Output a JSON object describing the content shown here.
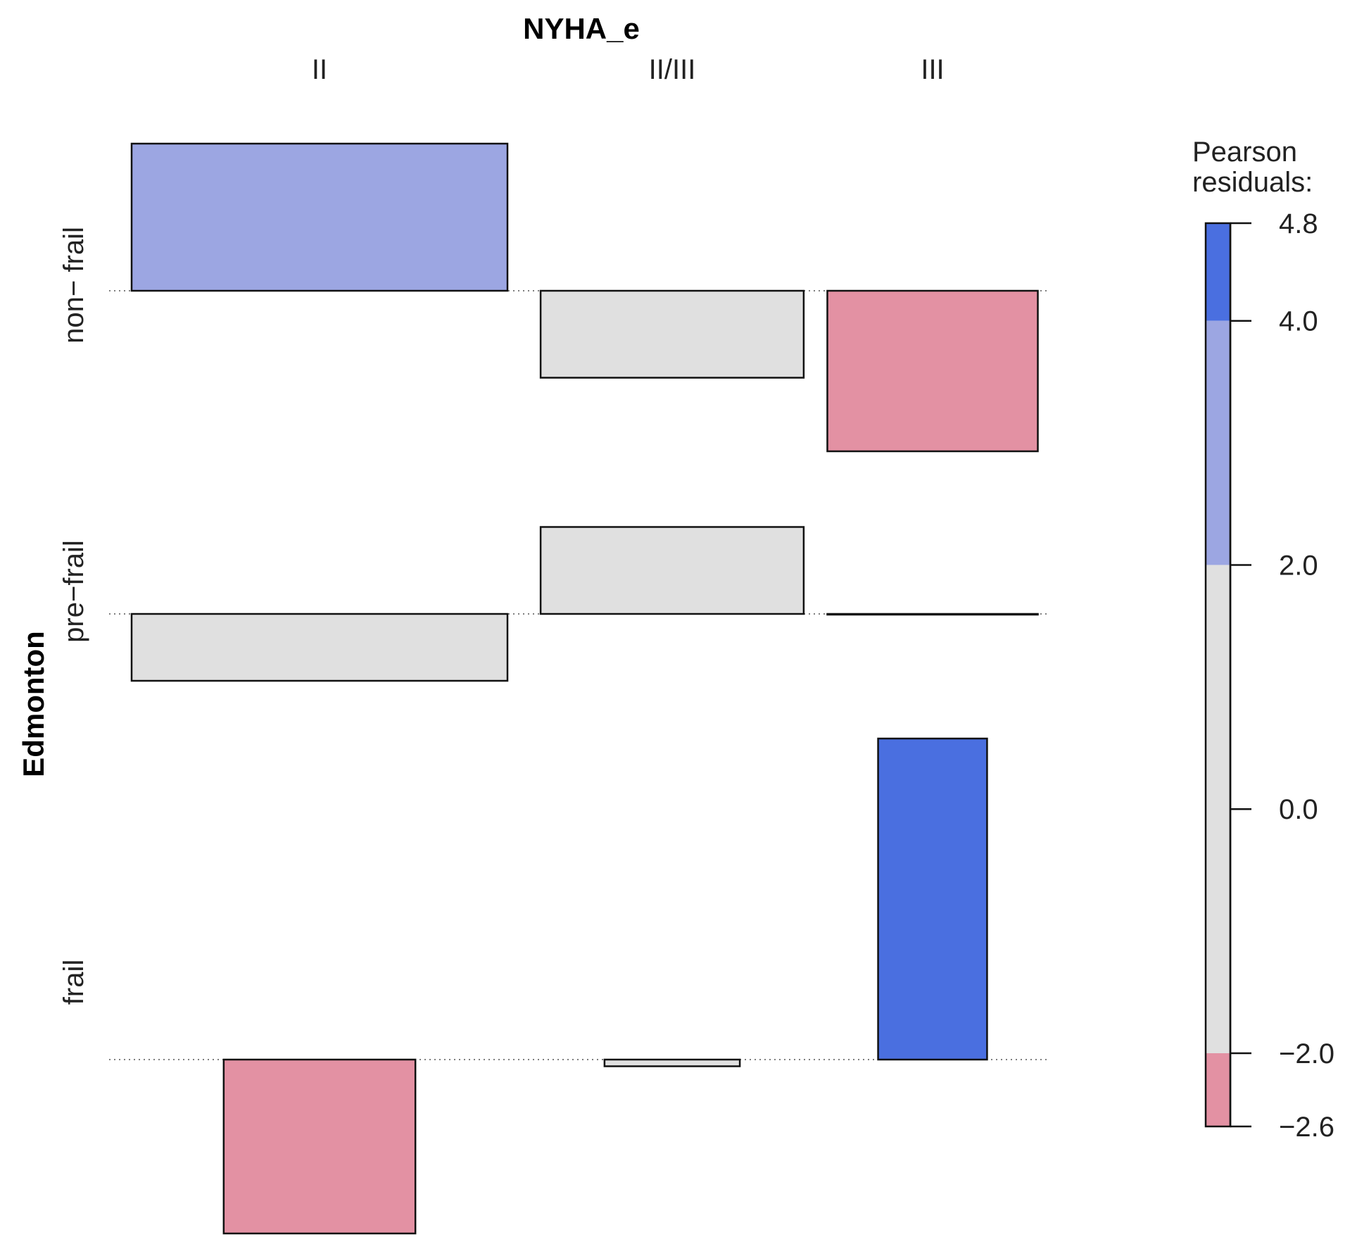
{
  "chart_data": {
    "type": "association-plot",
    "title": "",
    "xlabel": "NYHA_e",
    "ylabel": "Edmonton",
    "x_categories": [
      "II",
      "II/III",
      "III"
    ],
    "y_categories": [
      "non− frail",
      "pre−frail",
      "frail"
    ],
    "cells": [
      {
        "row": "non− frail",
        "col": "II",
        "residual": 2.2
      },
      {
        "row": "non− frail",
        "col": "II/III",
        "residual": -1.3
      },
      {
        "row": "non− frail",
        "col": "III",
        "residual": -2.4
      },
      {
        "row": "pre−frail",
        "col": "II",
        "residual": -1.0
      },
      {
        "row": "pre−frail",
        "col": "II/III",
        "residual": 1.3
      },
      {
        "row": "pre−frail",
        "col": "III",
        "residual": 0.0
      },
      {
        "row": "frail",
        "col": "II",
        "residual": -2.6
      },
      {
        "row": "frail",
        "col": "II/III",
        "residual": -0.1
      },
      {
        "row": "frail",
        "col": "III",
        "residual": 4.8
      }
    ],
    "legend": {
      "title_line1": "Pearson",
      "title_line2": "residuals:",
      "range": [
        -2.6,
        4.8
      ],
      "ticks": [
        "4.8",
        "4.0",
        "2.0",
        "0.0",
        "−2.0",
        "−2.6"
      ],
      "tick_values": [
        4.8,
        4.0,
        2.0,
        0.0,
        -2.0,
        -2.6
      ],
      "bands": [
        {
          "from": 4.0,
          "to": 4.8,
          "color": "#4a6fe0"
        },
        {
          "from": 2.0,
          "to": 4.0,
          "color": "#9ca6e2"
        },
        {
          "from": -2.0,
          "to": 2.0,
          "color": "#e0e0e0"
        },
        {
          "from": -2.6,
          "to": -2.0,
          "color": "#e391a3"
        }
      ]
    }
  }
}
